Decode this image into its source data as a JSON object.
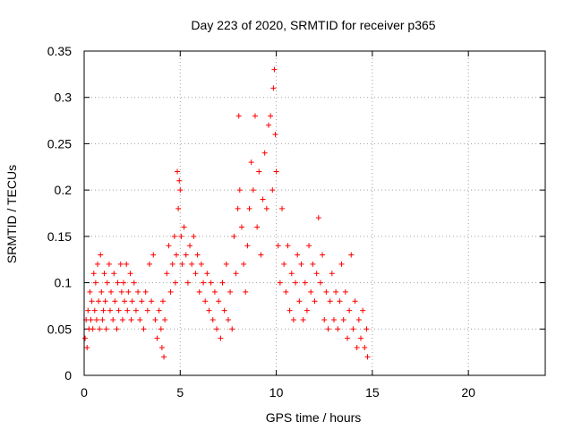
{
  "chart_data": {
    "type": "scatter",
    "title": "Day 223 of 2020, SRMTID for receiver p365",
    "xlabel": "GPS time / hours",
    "ylabel": "SRMTID / TECUs",
    "xlim": [
      0,
      24
    ],
    "ylim": [
      0,
      0.35
    ],
    "xticks": [
      "0",
      "5",
      "10",
      "15",
      "20"
    ],
    "yticks": [
      "0",
      "0.05",
      "0.1",
      "0.15",
      "0.2",
      "0.25",
      "0.3",
      "0.35"
    ],
    "grid": true,
    "marker": "+",
    "color": "#ff0000",
    "series": [
      {
        "name": "SRMTID",
        "points": [
          [
            0.05,
            0.04
          ],
          [
            0.1,
            0.06
          ],
          [
            0.15,
            0.03
          ],
          [
            0.2,
            0.07
          ],
          [
            0.25,
            0.05
          ],
          [
            0.3,
            0.09
          ],
          [
            0.35,
            0.06
          ],
          [
            0.4,
            0.08
          ],
          [
            0.45,
            0.05
          ],
          [
            0.5,
            0.11
          ],
          [
            0.55,
            0.07
          ],
          [
            0.6,
            0.1
          ],
          [
            0.65,
            0.06
          ],
          [
            0.7,
            0.12
          ],
          [
            0.75,
            0.08
          ],
          [
            0.8,
            0.05
          ],
          [
            0.85,
            0.13
          ],
          [
            0.9,
            0.09
          ],
          [
            0.95,
            0.06
          ],
          [
            1.0,
            0.07
          ],
          [
            1.05,
            0.11
          ],
          [
            1.1,
            0.08
          ],
          [
            1.15,
            0.05
          ],
          [
            1.2,
            0.1
          ],
          [
            1.3,
            0.12
          ],
          [
            1.35,
            0.07
          ],
          [
            1.4,
            0.09
          ],
          [
            1.5,
            0.06
          ],
          [
            1.55,
            0.11
          ],
          [
            1.6,
            0.08
          ],
          [
            1.7,
            0.05
          ],
          [
            1.75,
            0.1
          ],
          [
            1.8,
            0.07
          ],
          [
            1.9,
            0.12
          ],
          [
            1.95,
            0.09
          ],
          [
            2.0,
            0.06
          ],
          [
            2.05,
            0.1
          ],
          [
            2.1,
            0.08
          ],
          [
            2.2,
            0.12
          ],
          [
            2.25,
            0.07
          ],
          [
            2.3,
            0.09
          ],
          [
            2.4,
            0.11
          ],
          [
            2.45,
            0.06
          ],
          [
            2.5,
            0.08
          ],
          [
            2.6,
            0.1
          ],
          [
            2.7,
            0.07
          ],
          [
            2.8,
            0.09
          ],
          [
            2.9,
            0.06
          ],
          [
            3.0,
            0.08
          ],
          [
            3.1,
            0.05
          ],
          [
            3.2,
            0.09
          ],
          [
            3.3,
            0.07
          ],
          [
            3.4,
            0.12
          ],
          [
            3.5,
            0.08
          ],
          [
            3.6,
            0.13
          ],
          [
            3.7,
            0.06
          ],
          [
            3.8,
            0.04
          ],
          [
            3.9,
            0.07
          ],
          [
            4.0,
            0.05
          ],
          [
            4.05,
            0.03
          ],
          [
            4.1,
            0.08
          ],
          [
            4.15,
            0.02
          ],
          [
            4.2,
            0.06
          ],
          [
            4.3,
            0.11
          ],
          [
            4.4,
            0.14
          ],
          [
            4.5,
            0.09
          ],
          [
            4.6,
            0.12
          ],
          [
            4.7,
            0.15
          ],
          [
            4.75,
            0.1
          ],
          [
            4.8,
            0.13
          ],
          [
            4.85,
            0.22
          ],
          [
            4.9,
            0.18
          ],
          [
            4.95,
            0.21
          ],
          [
            5.0,
            0.2
          ],
          [
            5.05,
            0.15
          ],
          [
            5.1,
            0.12
          ],
          [
            5.2,
            0.16
          ],
          [
            5.3,
            0.13
          ],
          [
            5.4,
            0.1
          ],
          [
            5.5,
            0.14
          ],
          [
            5.6,
            0.12
          ],
          [
            5.7,
            0.15
          ],
          [
            5.8,
            0.11
          ],
          [
            5.9,
            0.13
          ],
          [
            6.0,
            0.09
          ],
          [
            6.1,
            0.12
          ],
          [
            6.2,
            0.1
          ],
          [
            6.3,
            0.08
          ],
          [
            6.4,
            0.11
          ],
          [
            6.5,
            0.07
          ],
          [
            6.6,
            0.1
          ],
          [
            6.7,
            0.06
          ],
          [
            6.8,
            0.09
          ],
          [
            6.9,
            0.05
          ],
          [
            7.0,
            0.08
          ],
          [
            7.1,
            0.04
          ],
          [
            7.2,
            0.1
          ],
          [
            7.3,
            0.07
          ],
          [
            7.4,
            0.12
          ],
          [
            7.5,
            0.06
          ],
          [
            7.6,
            0.09
          ],
          [
            7.7,
            0.05
          ],
          [
            7.8,
            0.15
          ],
          [
            7.9,
            0.11
          ],
          [
            8.0,
            0.18
          ],
          [
            8.05,
            0.28
          ],
          [
            8.1,
            0.2
          ],
          [
            8.2,
            0.16
          ],
          [
            8.3,
            0.12
          ],
          [
            8.4,
            0.09
          ],
          [
            8.5,
            0.14
          ],
          [
            8.6,
            0.18
          ],
          [
            8.7,
            0.23
          ],
          [
            8.8,
            0.2
          ],
          [
            8.9,
            0.28
          ],
          [
            9.0,
            0.16
          ],
          [
            9.1,
            0.22
          ],
          [
            9.2,
            0.13
          ],
          [
            9.3,
            0.19
          ],
          [
            9.4,
            0.24
          ],
          [
            9.5,
            0.18
          ],
          [
            9.6,
            0.27
          ],
          [
            9.7,
            0.28
          ],
          [
            9.8,
            0.2
          ],
          [
            9.85,
            0.31
          ],
          [
            9.9,
            0.33
          ],
          [
            9.95,
            0.26
          ],
          [
            10.0,
            0.22
          ],
          [
            10.1,
            0.14
          ],
          [
            10.2,
            0.1
          ],
          [
            10.3,
            0.18
          ],
          [
            10.4,
            0.12
          ],
          [
            10.5,
            0.09
          ],
          [
            10.6,
            0.14
          ],
          [
            10.7,
            0.07
          ],
          [
            10.8,
            0.11
          ],
          [
            10.9,
            0.06
          ],
          [
            11.0,
            0.1
          ],
          [
            11.1,
            0.13
          ],
          [
            11.2,
            0.08
          ],
          [
            11.3,
            0.12
          ],
          [
            11.4,
            0.06
          ],
          [
            11.5,
            0.1
          ],
          [
            11.6,
            0.07
          ],
          [
            11.7,
            0.14
          ],
          [
            11.8,
            0.09
          ],
          [
            11.9,
            0.12
          ],
          [
            12.0,
            0.08
          ],
          [
            12.1,
            0.11
          ],
          [
            12.2,
            0.17
          ],
          [
            12.3,
            0.1
          ],
          [
            12.4,
            0.13
          ],
          [
            12.5,
            0.06
          ],
          [
            12.6,
            0.09
          ],
          [
            12.7,
            0.05
          ],
          [
            12.8,
            0.08
          ],
          [
            12.9,
            0.11
          ],
          [
            13.0,
            0.06
          ],
          [
            13.1,
            0.09
          ],
          [
            13.2,
            0.05
          ],
          [
            13.3,
            0.08
          ],
          [
            13.4,
            0.12
          ],
          [
            13.5,
            0.06
          ],
          [
            13.6,
            0.09
          ],
          [
            13.7,
            0.04
          ],
          [
            13.8,
            0.07
          ],
          [
            13.9,
            0.13
          ],
          [
            14.0,
            0.05
          ],
          [
            14.1,
            0.08
          ],
          [
            14.2,
            0.03
          ],
          [
            14.3,
            0.06
          ],
          [
            14.4,
            0.04
          ],
          [
            14.5,
            0.07
          ],
          [
            14.6,
            0.03
          ],
          [
            14.7,
            0.05
          ],
          [
            14.75,
            0.02
          ]
        ]
      }
    ]
  }
}
